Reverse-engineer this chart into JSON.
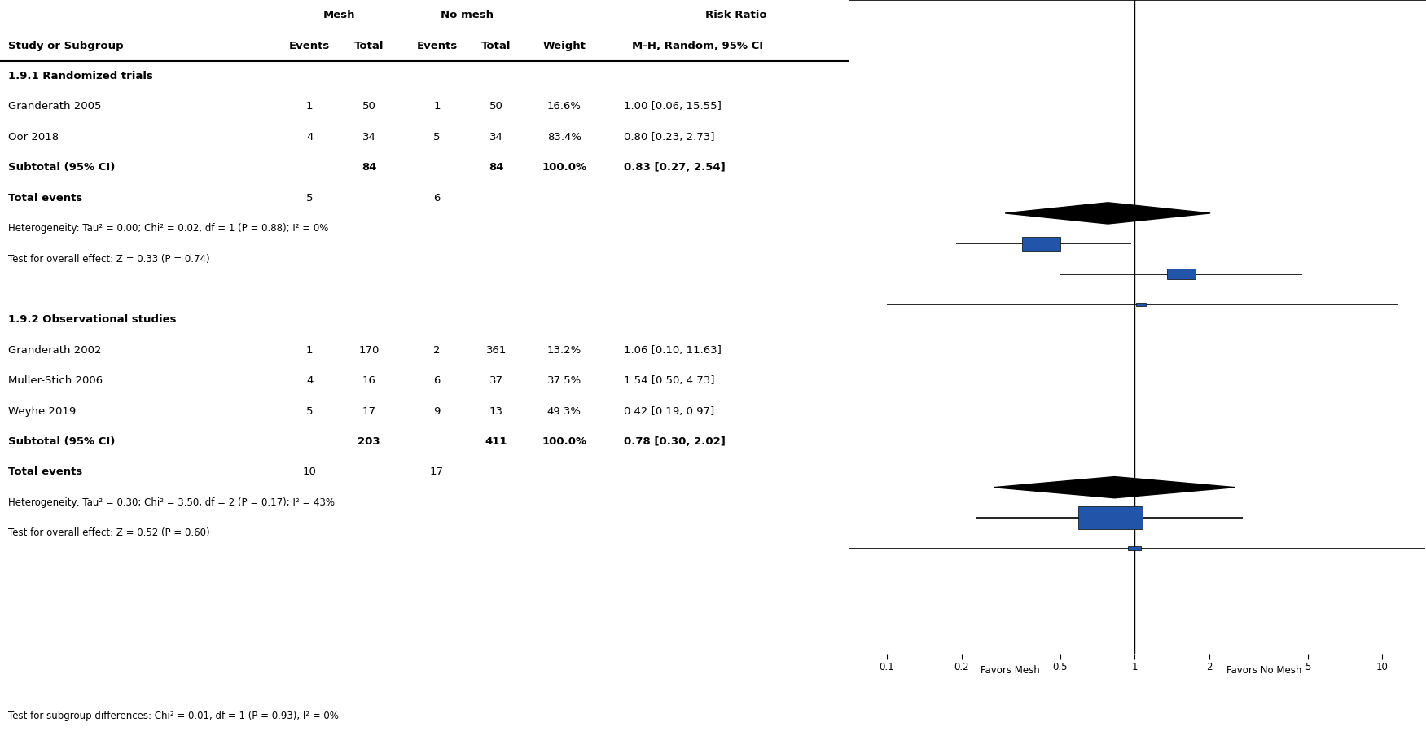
{
  "studies": [
    {
      "label": "Granderath 2005",
      "mesh_events": 1,
      "mesh_total": 50,
      "nomesh_events": 1,
      "nomesh_total": 50,
      "weight": "16.6%",
      "weight_val": 16.6,
      "rr": 1.0,
      "ci_low": 0.06,
      "ci_high": 15.55,
      "rr_text": "1.00 [0.06, 15.55]",
      "group": 1,
      "is_subtotal": false
    },
    {
      "label": "Oor 2018",
      "mesh_events": 4,
      "mesh_total": 34,
      "nomesh_events": 5,
      "nomesh_total": 34,
      "weight": "83.4%",
      "weight_val": 83.4,
      "rr": 0.8,
      "ci_low": 0.23,
      "ci_high": 2.73,
      "rr_text": "0.80 [0.23, 2.73]",
      "group": 1,
      "is_subtotal": false
    },
    {
      "label": "Subtotal (95% CI)",
      "mesh_total": 84,
      "nomesh_total": 84,
      "weight": "100.0%",
      "weight_val": 100.0,
      "rr": 0.83,
      "ci_low": 0.27,
      "ci_high": 2.54,
      "rr_text": "0.83 [0.27, 2.54]",
      "group": 1,
      "is_subtotal": true
    },
    {
      "label": "Granderath 2002",
      "mesh_events": 1,
      "mesh_total": 170,
      "nomesh_events": 2,
      "nomesh_total": 361,
      "weight": "13.2%",
      "weight_val": 13.2,
      "rr": 1.06,
      "ci_low": 0.1,
      "ci_high": 11.63,
      "rr_text": "1.06 [0.10, 11.63]",
      "group": 2,
      "is_subtotal": false
    },
    {
      "label": "Muller-Stich 2006",
      "mesh_events": 4,
      "mesh_total": 16,
      "nomesh_events": 6,
      "nomesh_total": 37,
      "weight": "37.5%",
      "weight_val": 37.5,
      "rr": 1.54,
      "ci_low": 0.5,
      "ci_high": 4.73,
      "rr_text": "1.54 [0.50, 4.73]",
      "group": 2,
      "is_subtotal": false
    },
    {
      "label": "Weyhe 2019",
      "mesh_events": 5,
      "mesh_total": 17,
      "nomesh_events": 9,
      "nomesh_total": 13,
      "weight": "49.3%",
      "weight_val": 49.3,
      "rr": 0.42,
      "ci_low": 0.19,
      "ci_high": 0.97,
      "rr_text": "0.42 [0.19, 0.97]",
      "group": 2,
      "is_subtotal": false
    },
    {
      "label": "Subtotal (95% CI)",
      "mesh_total": 203,
      "nomesh_total": 411,
      "weight": "100.0%",
      "weight_val": 100.0,
      "rr": 0.78,
      "ci_low": 0.3,
      "ci_high": 2.02,
      "rr_text": "0.78 [0.30, 2.02]",
      "group": 2,
      "is_subtotal": true
    }
  ],
  "group1_label": "1.9.1 Randomized trials",
  "group2_label": "1.9.2 Observational studies",
  "group1_total_events_mesh": 5,
  "group1_total_events_nomesh": 6,
  "group1_het": "Heterogeneity: Tau² = 0.00; Chi² = 0.02, df = 1 (P = 0.88); I² = 0%",
  "group1_effect": "Test for overall effect: Z = 0.33 (P = 0.74)",
  "group2_total_events_mesh": 10,
  "group2_total_events_nomesh": 17,
  "group2_het": "Heterogeneity: Tau² = 0.30; Chi² = 3.50, df = 2 (P = 0.17); I² = 43%",
  "group2_effect": "Test for overall effect: Z = 0.52 (P = 0.60)",
  "subgroup_test": "Test for subgroup differences: Chi² = 0.01, df = 1 (P = 0.93), I² = 0%",
  "x_label_left": "Favors Mesh",
  "x_label_right": "Favors No Mesh",
  "square_color": "#2255aa",
  "diamond_color": "#000000"
}
